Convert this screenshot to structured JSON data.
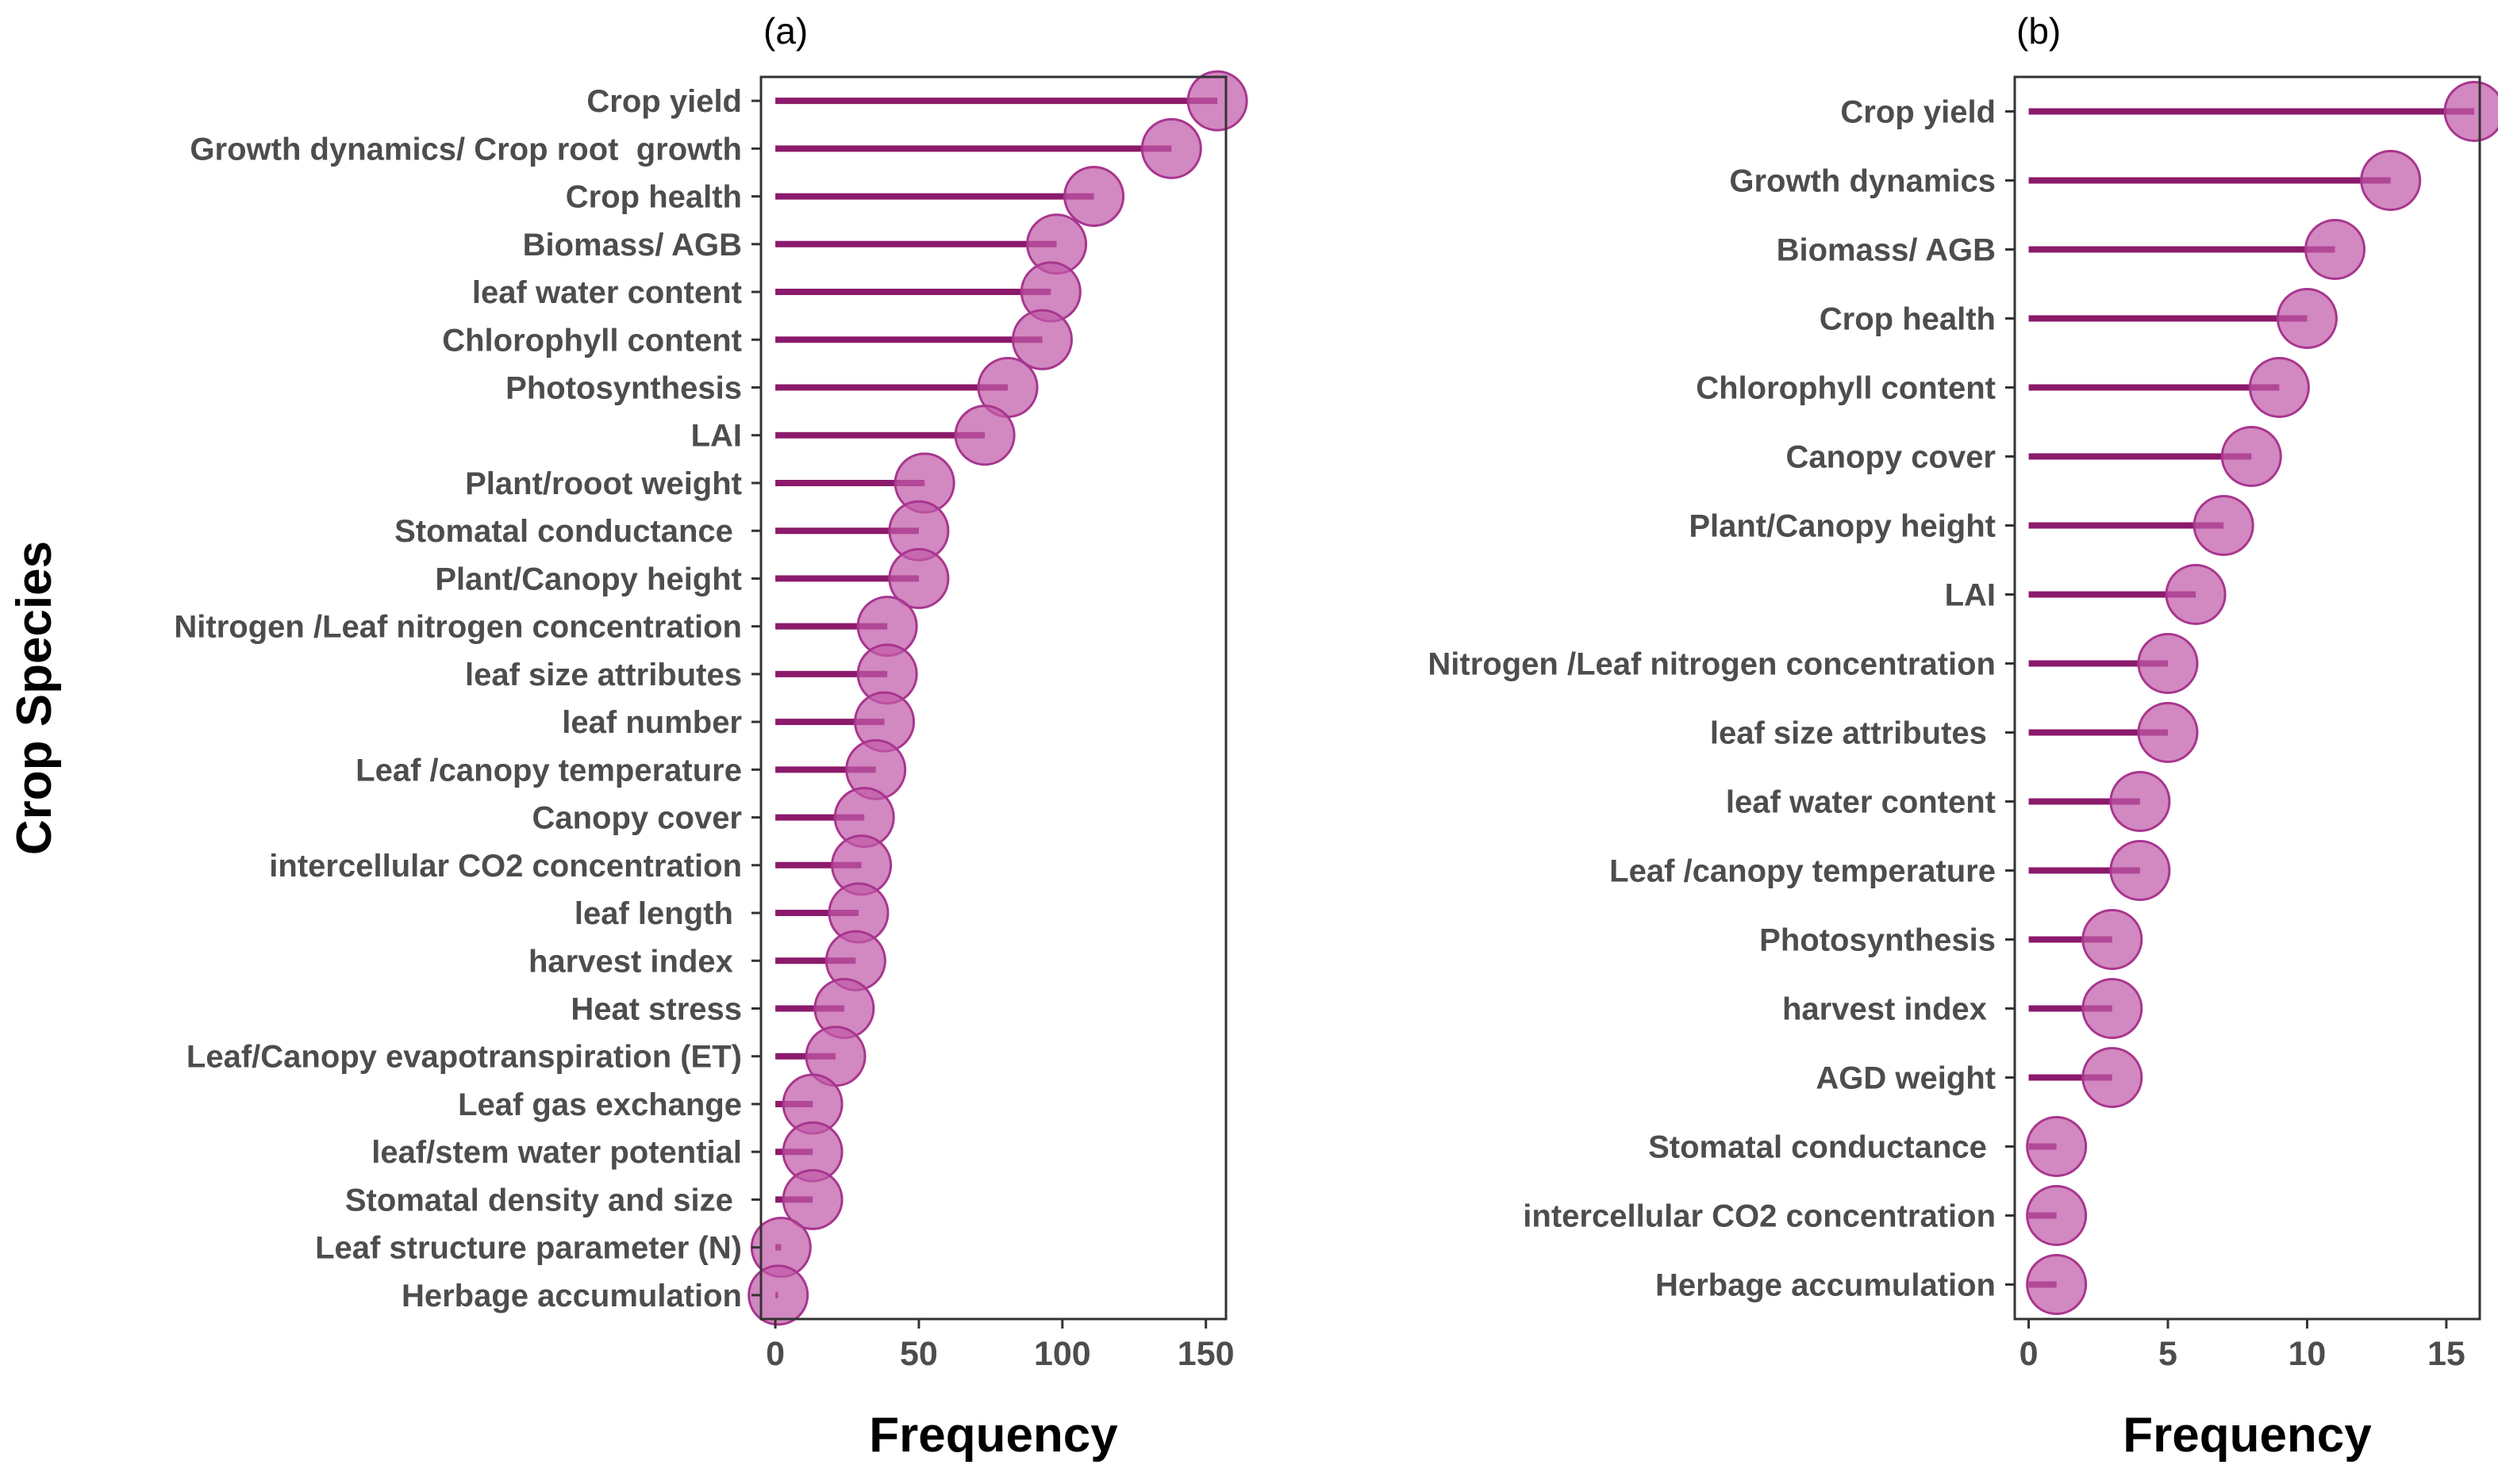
{
  "y_axis_title": "Crop Species",
  "colors": {
    "stem": "#8b1a6b",
    "marker": "#c05aa8",
    "marker_edge": "#a8358f",
    "frame": "#333333",
    "label": "#4d4d4d"
  },
  "chart_data": [
    {
      "type": "lollipop",
      "orientation": "horizontal",
      "panel_label": "(a)",
      "xlabel": "Frequency",
      "ylabel": "Crop Species",
      "xlim": [
        -5,
        157
      ],
      "xticks": [
        0,
        50,
        100,
        150
      ],
      "grid": false,
      "categories": [
        "Crop yield",
        "Growth dynamics/ Crop root  growth",
        "Crop health",
        "Biomass/ AGB",
        "leaf water content",
        "Chlorophyll content",
        "Photosynthesis",
        "LAI",
        "Plant/rooot weight",
        "Stomatal conductance ",
        "Plant/Canopy height",
        "Nitrogen /Leaf nitrogen concentration",
        "leaf size attributes",
        "leaf number",
        "Leaf /canopy temperature",
        "Canopy cover",
        "intercellular CO2 concentration",
        "leaf length ",
        "harvest index ",
        "Heat stress",
        "Leaf/Canopy evapotranspiration (ET)",
        "Leaf gas exchange",
        "leaf/stem water potential",
        "Stomatal density and size ",
        "Leaf structure parameter (N)",
        "Herbage accumulation"
      ],
      "values": [
        154,
        138,
        111,
        98,
        96,
        93,
        81,
        73,
        52,
        50,
        50,
        39,
        39,
        38,
        35,
        31,
        30,
        29,
        28,
        24,
        21,
        13,
        13,
        13,
        2,
        1
      ]
    },
    {
      "type": "lollipop",
      "orientation": "horizontal",
      "panel_label": "(b)",
      "xlabel": "Frequency",
      "ylabel": "",
      "xlim": [
        -0.5,
        16.2
      ],
      "xticks": [
        0,
        5,
        10,
        15
      ],
      "grid": false,
      "categories": [
        "Crop yield",
        "Growth dynamics",
        "Biomass/ AGB",
        "Crop health",
        "Chlorophyll content",
        "Canopy cover",
        "Plant/Canopy height",
        "LAI",
        "Nitrogen /Leaf nitrogen concentration",
        "leaf size attributes ",
        "leaf water content",
        "Leaf /canopy temperature",
        "Photosynthesis",
        "harvest index ",
        "AGD weight",
        "Stomatal conductance ",
        "intercellular CO2 concentration",
        "Herbage accumulation"
      ],
      "values": [
        16,
        13,
        11,
        10,
        9,
        8,
        7,
        6,
        5,
        5,
        4,
        4,
        3,
        3,
        3,
        1,
        1,
        1
      ]
    }
  ]
}
